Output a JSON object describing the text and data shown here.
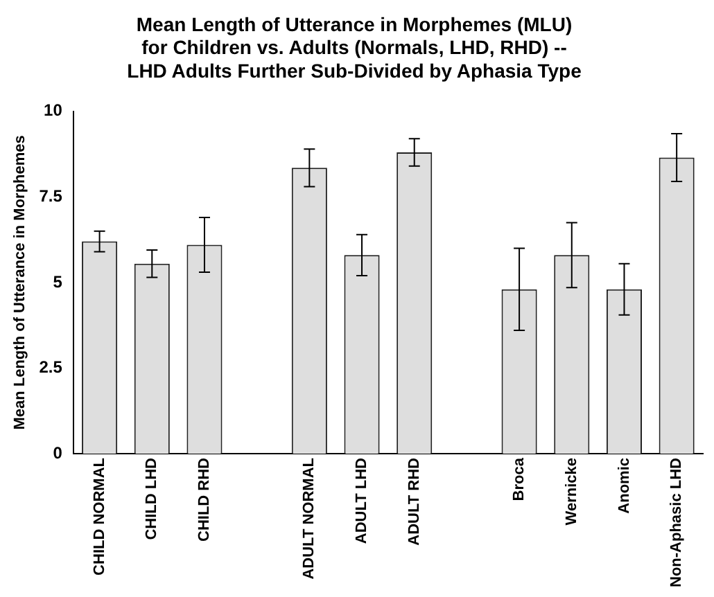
{
  "chart_data": {
    "type": "bar",
    "title": "Mean Length of Utterance in Morphemes (MLU)\nfor Children vs. Adults (Normals, LHD, RHD) --\nLHD Adults Further Sub-Divided by Aphasia Type",
    "ylabel": "Mean Length of Utterance in Morphemes",
    "categories": [
      "CHILD NORMAL",
      "CHILD LHD",
      "CHILD RHD",
      null,
      "ADULT NORMAL",
      "ADULT LHD",
      "ADULT RHD",
      null,
      "Broca",
      "Wernicke",
      "Anomic",
      "Non-Aphasic LHD"
    ],
    "values": [
      6.2,
      5.55,
      6.1,
      null,
      8.35,
      5.8,
      8.8,
      null,
      4.8,
      5.8,
      4.8,
      8.65
    ],
    "errors": [
      0.3,
      0.4,
      0.8,
      null,
      0.55,
      0.6,
      0.4,
      null,
      1.2,
      0.95,
      0.75,
      0.7
    ],
    "color": "#dedede",
    "ylim": [
      0,
      10
    ],
    "yticks": [
      0,
      {
        "value": 2.5,
        "label": "2.5"
      },
      5,
      {
        "value": 7.5,
        "label": "7.5"
      },
      10
    ],
    "grid": false,
    "legend": false
  }
}
